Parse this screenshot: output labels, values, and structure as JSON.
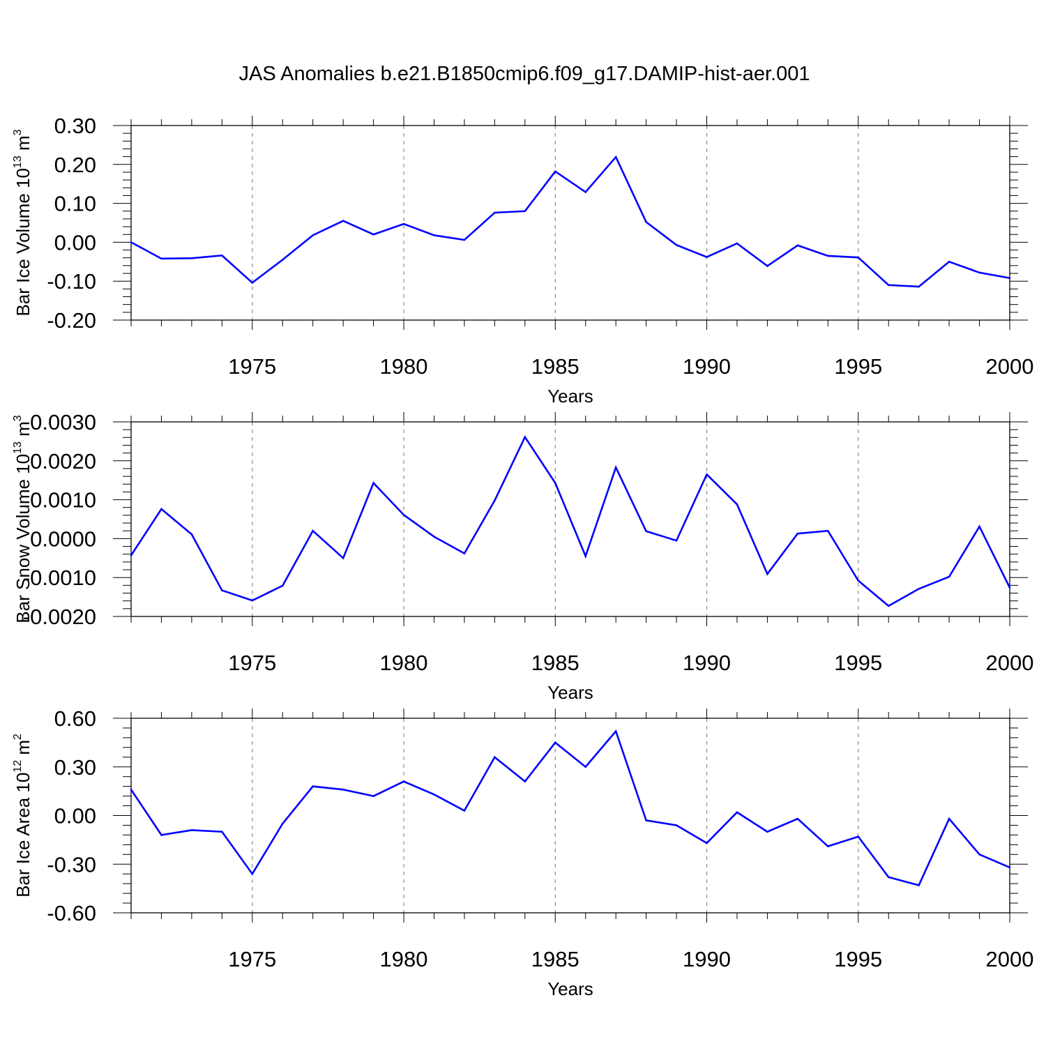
{
  "title": "JAS Anomalies b.e21.B1850cmip6.f09_g17.DAMIP-hist-aer.001",
  "line_color": "#0000ff",
  "chart_data": [
    {
      "type": "line",
      "ylabel": {
        "text": "Bar Ice Volume 10",
        "exp": "13",
        "unit": " m",
        "unit_exp": "3"
      },
      "xlabel": "Years",
      "ylim": [
        -0.2,
        0.3
      ],
      "yticks": [
        -0.2,
        -0.1,
        0.0,
        0.1,
        0.2,
        0.3
      ],
      "ytick_labels": [
        "-0.20",
        "-0.10",
        "0.00",
        "0.10",
        "0.20",
        "0.30"
      ],
      "xlim": [
        1971,
        2000
      ],
      "xticks": [
        1975,
        1980,
        1985,
        1990,
        1995,
        2000
      ],
      "xtick_labels": [
        "1975",
        "1980",
        "1985",
        "1990",
        "1995",
        "2000"
      ],
      "x": [
        1971,
        1972,
        1973,
        1974,
        1975,
        1976,
        1977,
        1978,
        1979,
        1980,
        1981,
        1982,
        1983,
        1984,
        1985,
        1986,
        1987,
        1988,
        1989,
        1990,
        1991,
        1992,
        1993,
        1994,
        1995,
        1996,
        1997,
        1998,
        1999,
        2000
      ],
      "y": [
        0.0,
        -0.042,
        -0.041,
        -0.034,
        -0.104,
        -0.045,
        0.018,
        0.055,
        0.02,
        0.047,
        0.018,
        0.006,
        0.076,
        0.08,
        0.182,
        0.129,
        0.219,
        0.052,
        -0.007,
        -0.038,
        -0.003,
        -0.061,
        -0.008,
        -0.035,
        -0.039,
        -0.11,
        -0.114,
        -0.05,
        -0.078,
        -0.092
      ]
    },
    {
      "type": "line",
      "ylabel": {
        "text": "Bar Snow Volume 10",
        "exp": "13",
        "unit": " m",
        "unit_exp": "3"
      },
      "xlabel": "Years",
      "ylim": [
        -0.002,
        0.003
      ],
      "yticks": [
        -0.002,
        -0.001,
        0.0,
        0.001,
        0.002,
        0.003
      ],
      "ytick_labels": [
        "-0.0020",
        "-0.0010",
        "0.0000",
        "0.0010",
        "0.0020",
        "0.0030"
      ],
      "xlim": [
        1971,
        2000
      ],
      "xticks": [
        1975,
        1980,
        1985,
        1990,
        1995,
        2000
      ],
      "xtick_labels": [
        "1975",
        "1980",
        "1985",
        "1990",
        "1995",
        "2000"
      ],
      "x": [
        1971,
        1972,
        1973,
        1974,
        1975,
        1976,
        1977,
        1978,
        1979,
        1980,
        1981,
        1982,
        1983,
        1984,
        1985,
        1986,
        1987,
        1988,
        1989,
        1990,
        1991,
        1992,
        1993,
        1994,
        1995,
        1996,
        1997,
        1998,
        1999,
        2000
      ],
      "y": [
        -0.00043,
        0.00076,
        0.00011,
        -0.00133,
        -0.00159,
        -0.00121,
        0.0002,
        -0.0005,
        0.00143,
        0.00061,
        5e-05,
        -0.00038,
        0.00098,
        0.00261,
        0.00143,
        -0.00045,
        0.00183,
        0.00019,
        -5e-05,
        0.00165,
        0.00088,
        -0.00091,
        0.00013,
        0.0002,
        -0.00108,
        -0.00173,
        -0.00129,
        -0.00098,
        0.00031,
        -0.00126
      ]
    },
    {
      "type": "line",
      "ylabel": {
        "text": "Bar Ice Area 10",
        "exp": "12",
        "unit": " m",
        "unit_exp": "2"
      },
      "xlabel": "Years",
      "ylim": [
        -0.6,
        0.6
      ],
      "yticks": [
        -0.6,
        -0.3,
        0.0,
        0.3,
        0.6
      ],
      "ytick_labels": [
        "-0.60",
        "-0.30",
        "0.00",
        "0.30",
        "0.60"
      ],
      "xlim": [
        1971,
        2000
      ],
      "xticks": [
        1975,
        1980,
        1985,
        1990,
        1995,
        2000
      ],
      "xtick_labels": [
        "1975",
        "1980",
        "1985",
        "1990",
        "1995",
        "2000"
      ],
      "x": [
        1971,
        1972,
        1973,
        1974,
        1975,
        1976,
        1977,
        1978,
        1979,
        1980,
        1981,
        1982,
        1983,
        1984,
        1985,
        1986,
        1987,
        1988,
        1989,
        1990,
        1991,
        1992,
        1993,
        1994,
        1995,
        1996,
        1997,
        1998,
        1999,
        2000
      ],
      "y": [
        0.16,
        -0.12,
        -0.09,
        -0.1,
        -0.36,
        -0.05,
        0.18,
        0.16,
        0.12,
        0.21,
        0.13,
        0.03,
        0.36,
        0.21,
        0.45,
        0.3,
        0.52,
        -0.03,
        -0.06,
        -0.17,
        0.02,
        -0.1,
        -0.02,
        -0.19,
        -0.13,
        -0.38,
        -0.43,
        -0.02,
        -0.24,
        -0.32
      ]
    }
  ]
}
